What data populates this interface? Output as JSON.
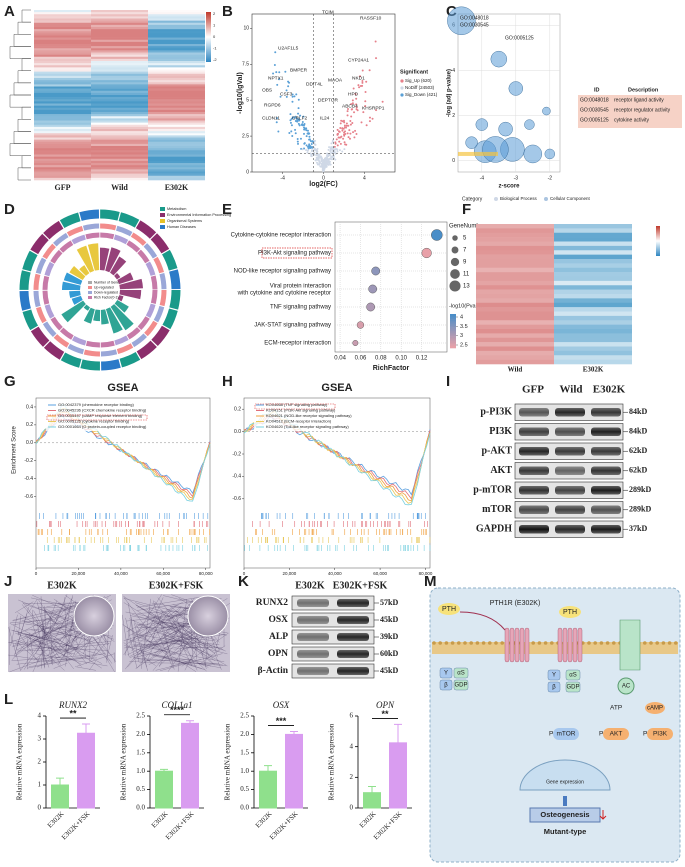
{
  "panels": {
    "letters": [
      "A",
      "B",
      "C",
      "D",
      "E",
      "F",
      "G",
      "H",
      "I",
      "J",
      "K",
      "L",
      "M"
    ],
    "A": {
      "columns": [
        "GFP",
        "Wild",
        "E302K"
      ],
      "scale": [
        2,
        1,
        0,
        -1,
        -2
      ]
    },
    "B": {
      "ylabel": "-log10(lgVal)",
      "xlabel": "log2(FC)",
      "yticks": [
        0,
        2.5,
        5,
        {
          "value": 7.5,
          "label": "7.5"
        },
        10
      ],
      "xticks": [
        -4,
        0,
        4
      ],
      "legend_title": "Significant",
      "legend": [
        "Sig_Up (620)",
        "NoDiff (24503)",
        "Sig_Down (421)"
      ],
      "genes": [
        "TCIM",
        "RASSF10",
        "U2AF1L5",
        "CYP24A1",
        "NKD1",
        "MAOA",
        "DDIT4L",
        "BMPER",
        "NPTX1",
        "OBS",
        "CSF3",
        "RGPD6",
        "DEPTOR",
        "HPD",
        "ABCB4",
        "KHSRPP1",
        "CLDN11",
        "CRLF2",
        "IL24"
      ]
    },
    "C": {
      "bubble_labels": [
        "GO:0048018",
        "GO:0030545",
        "GO:0005125"
      ],
      "xlabel": "z-score",
      "ylabel": "-log (adj p-value)",
      "xticks": [
        -4,
        -3,
        -2
      ],
      "yticks": [
        0,
        2,
        4,
        6
      ],
      "table_header": [
        "ID",
        "Description"
      ],
      "table_rows": [
        [
          "GO:0048018",
          "receptor ligand activity"
        ],
        [
          "GO:0030545",
          "receptor regulator activity"
        ],
        [
          "GO:0005125",
          "cytokine activity"
        ]
      ],
      "legend_title": "Category",
      "legend": [
        "Biological Process",
        "Cellular Component"
      ]
    },
    "D": {
      "legend": [
        "Metabolism",
        "Environmental Information Processing",
        "Organismal Systems",
        "Human Diseases"
      ],
      "inner_legend": [
        "Number of Gene",
        "Up-regulated",
        "Down-regulated",
        "Rich Factor(0-1)"
      ]
    },
    "F": {
      "columns": [
        "Wild",
        "E302K"
      ]
    },
    "G": {
      "title": "GSEA",
      "ylabel": "Enrichment Score",
      "yticks": [
        {
          "value": 0.4,
          "label": "0.4"
        },
        {
          "value": 0.2,
          "label": "0.2"
        },
        {
          "value": 0,
          "label": "0.0"
        },
        {
          "value": -0.2,
          "label": "-0.2"
        },
        {
          "value": -0.4,
          "label": "-0.4"
        },
        {
          "value": -0.6,
          "label": "-0.6"
        }
      ],
      "ylim": [
        -0.75,
        0.5
      ],
      "xticks": [
        0,
        {
          "value": 20000,
          "label": "20,000"
        },
        {
          "value": 40000,
          "label": "40,000"
        },
        {
          "value": 60000,
          "label": "60,000"
        },
        {
          "value": 80000,
          "label": "80,000"
        }
      ],
      "xlim": [
        0,
        82000
      ],
      "legend": [
        "GO:0042379 (chemokine receptor binding)",
        "GO:0045236 (CXCR chemokine receptor binding)",
        "GO:0035497 (cAMP response element binding)",
        "GO:0005126 (cytokine receptor binding)",
        "GO:0001664 (G protein-coupled receptor binding)"
      ]
    },
    "H": {
      "title": "GSEA",
      "yticks": [
        {
          "value": 0.2,
          "label": "0.2"
        },
        {
          "value": 0,
          "label": "0.0"
        },
        {
          "value": -0.2,
          "label": "-0.2"
        },
        {
          "value": -0.4,
          "label": "-0.4"
        },
        {
          "value": -0.6,
          "label": "-0.6"
        }
      ],
      "ylim": [
        -0.7,
        0.3
      ],
      "xticks": [
        0,
        {
          "value": 20000,
          "label": "20,000"
        },
        {
          "value": 40000,
          "label": "40,000"
        },
        {
          "value": 60000,
          "label": "60,000"
        },
        {
          "value": 80000,
          "label": "80,000"
        }
      ],
      "xlim": [
        0,
        82000
      ],
      "legend": [
        "KO04668 (TNF signaling pathway)",
        "KO04151 (PI3K-Akt signaling pathway)",
        "KO04621 (NOD-like receptor signaling pathway)",
        "KO04512 (ECM-receptor interaction)",
        "KO04620 (Toll-like receptor signaling pathway)"
      ]
    },
    "I": {
      "lanes": [
        "GFP",
        "Wild",
        "E302K"
      ],
      "proteins": [
        "p-PI3K",
        "PI3K",
        "p-AKT",
        "AKT",
        "p-mTOR",
        "mTOR",
        "GAPDH"
      ],
      "sizes": [
        "84kD",
        "84kD",
        "62kD",
        "62kD",
        "289kD",
        "289kD",
        "37kD"
      ]
    },
    "J": {
      "images": [
        "E302K",
        "E302K+FSK"
      ]
    },
    "K": {
      "lanes": [
        "E302K",
        "E302K+FSK"
      ],
      "proteins": [
        "RUNX2",
        "OSX",
        "ALP",
        "OPN",
        "β-Actin"
      ],
      "sizes": [
        "57kD",
        "45kD",
        "39kD",
        "60kD",
        "45kD"
      ]
    },
    "M": {
      "labels": [
        "PTH",
        "PTH1R (E302K)",
        "PTH",
        "Y",
        "β",
        "αS",
        "GDP",
        "Y",
        "β",
        "αS",
        "GDP",
        "AC",
        "ATP",
        "cAMP",
        "PI3K",
        "AKT",
        "mTOR",
        "P",
        "P",
        "P",
        "Gene expression",
        "Osteogenesis",
        "Mutant-type"
      ]
    }
  },
  "chart_data": [
    {
      "type": "bubble",
      "categories": [
        "Cytokine-cytokine receptor interaction",
        "PI3K-Akt signaling pathway",
        "NOD-like receptor signaling pathway",
        "Viral protein interaction with cytokine and cytokine receptor",
        "TNF signaling pathway",
        "JAK-STAT signaling pathway",
        "ECM-receptor interaction"
      ],
      "values": [
        0.135,
        0.125,
        0.075,
        0.072,
        0.07,
        0.06,
        0.055
      ],
      "sizes": [
        13,
        11,
        9,
        9,
        9,
        7,
        5
      ],
      "pvalues": [
        4.1,
        2.2,
        3.3,
        3.1,
        2.9,
        2.4,
        2.6
      ],
      "xlabel": "RichFactor",
      "xlim": [
        0.035,
        0.145
      ],
      "xticks": [
        0.04,
        0.06,
        0.08,
        {
          "value": 0.1,
          "label": "0.10"
        },
        0.12
      ],
      "size_legend_title": "GeneNumber",
      "size_legend": [
        5,
        7,
        9,
        11,
        13
      ],
      "color_legend_title": "-log10(Pvalue)",
      "color_legend": [
        4,
        3.5,
        3,
        2.5
      ],
      "colors": [
        "#e8a0a8",
        "#4a8ec8"
      ]
    },
    {
      "type": "bar",
      "title": "RUNX2",
      "ylabel": "Relative mRNA expression",
      "categories": [
        "E302K",
        "E302K+FSK"
      ],
      "values": [
        1.0,
        3.25
      ],
      "errors": [
        0.3,
        0.4
      ],
      "colors": [
        "#8fe08c",
        "#d99cf0"
      ],
      "ylim": [
        0,
        4
      ],
      "yticks": [
        0,
        1,
        2,
        3,
        4
      ],
      "significance": "**"
    },
    {
      "type": "bar",
      "title": "COL1a1",
      "ylabel": "Relative mRNA expression",
      "categories": [
        "E302K",
        "E302K+FSK"
      ],
      "values": [
        1.0,
        2.3
      ],
      "errors": [
        0.05,
        0.07
      ],
      "colors": [
        "#8fe08c",
        "#d99cf0"
      ],
      "ylim": [
        0,
        2.5
      ],
      "yticks": [
        {
          "value": 0,
          "label": "0.0"
        },
        0.5,
        {
          "value": 1,
          "label": "1.0"
        },
        1.5,
        {
          "value": 2,
          "label": "2.0"
        },
        2.5
      ],
      "significance": "****"
    },
    {
      "type": "bar",
      "title": "OSX",
      "ylabel": "Relative mRNA expression",
      "categories": [
        "E302K",
        "E302K+FSK"
      ],
      "values": [
        1.0,
        2.0
      ],
      "errors": [
        0.15,
        0.08
      ],
      "colors": [
        "#8fe08c",
        "#d99cf0"
      ],
      "ylim": [
        0,
        2.5
      ],
      "yticks": [
        {
          "value": 0,
          "label": "0.0"
        },
        0.5,
        {
          "value": 1,
          "label": "1.0"
        },
        1.5,
        {
          "value": 2,
          "label": "2.0"
        },
        2.5
      ],
      "significance": "***"
    },
    {
      "type": "bar",
      "title": "OPN",
      "ylabel": "Relative mRNA expression",
      "categories": [
        "E302K",
        "E302K+FSK"
      ],
      "values": [
        1.0,
        4.25
      ],
      "errors": [
        0.4,
        1.2
      ],
      "colors": [
        "#8fe08c",
        "#d99cf0"
      ],
      "ylim": [
        0,
        6
      ],
      "yticks": [
        0,
        2,
        4,
        6
      ],
      "significance": "**"
    }
  ]
}
